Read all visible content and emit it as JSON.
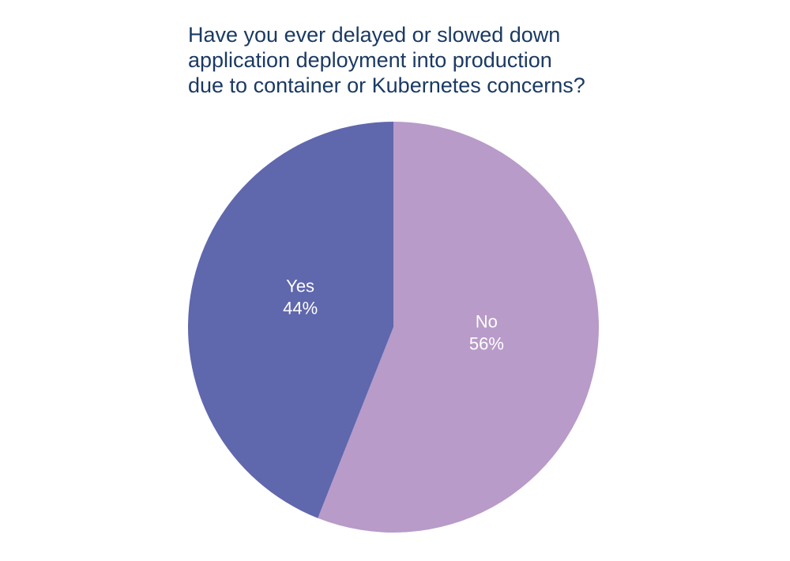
{
  "chart_data": {
    "type": "pie",
    "title": [
      "Have you ever delayed or slowed down",
      "application deployment into production",
      "due to container or Kubernetes concerns?"
    ],
    "categories": [
      "No",
      "Yes"
    ],
    "values": [
      56,
      44
    ],
    "value_labels": [
      "56%",
      "44%"
    ],
    "colors": [
      "#b89bc9",
      "#5f67ad"
    ]
  }
}
